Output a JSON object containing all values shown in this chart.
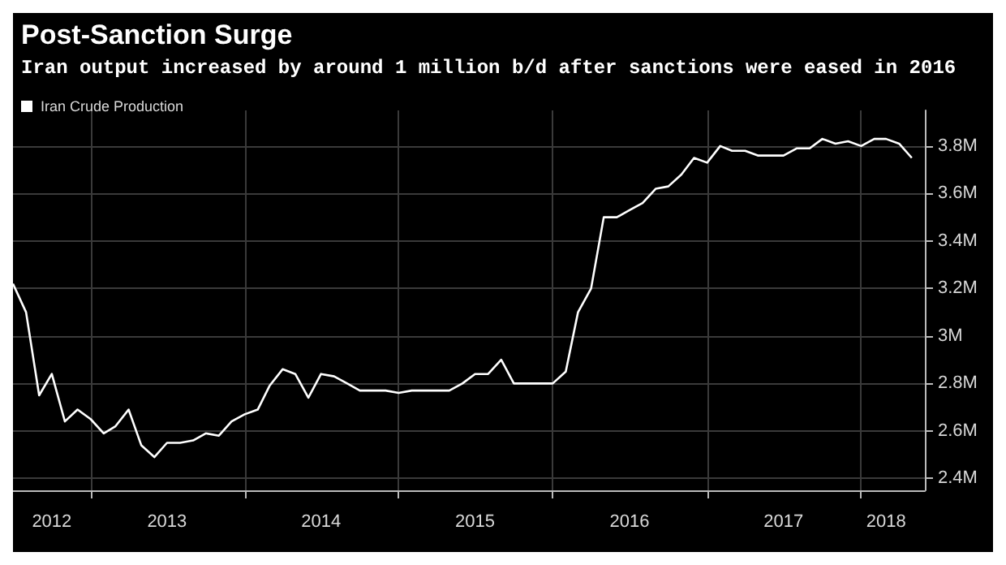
{
  "chart_data": {
    "type": "line",
    "title": "Post-Sanction Surge",
    "subtitle": "Iran output increased by around 1 million b/d after sanctions were eased in 2016",
    "x": [
      "2012-07",
      "2012-08",
      "2012-09",
      "2012-10",
      "2012-11",
      "2012-12",
      "2013-01",
      "2013-02",
      "2013-03",
      "2013-04",
      "2013-05",
      "2013-06",
      "2013-07",
      "2013-08",
      "2013-09",
      "2013-10",
      "2013-11",
      "2013-12",
      "2014-01",
      "2014-02",
      "2014-03",
      "2014-04",
      "2014-05",
      "2014-06",
      "2014-07",
      "2014-08",
      "2014-09",
      "2014-10",
      "2014-11",
      "2014-12",
      "2015-01",
      "2015-02",
      "2015-03",
      "2015-04",
      "2015-05",
      "2015-06",
      "2015-07",
      "2015-08",
      "2015-09",
      "2015-10",
      "2015-11",
      "2015-12",
      "2016-01",
      "2016-02",
      "2016-03",
      "2016-04",
      "2016-05",
      "2016-06",
      "2016-07",
      "2016-08",
      "2016-09",
      "2016-10",
      "2016-11",
      "2016-12",
      "2017-01",
      "2017-02",
      "2017-03",
      "2017-04",
      "2017-05",
      "2017-06",
      "2017-07",
      "2017-08",
      "2017-09",
      "2017-10",
      "2017-11",
      "2017-12",
      "2018-01",
      "2018-02",
      "2018-03",
      "2018-04",
      "2018-05"
    ],
    "series": [
      {
        "name": "Iran Crude Production",
        "color": "#ffffff",
        "values": [
          3.22,
          3.1,
          2.75,
          2.84,
          2.64,
          2.69,
          2.65,
          2.59,
          2.62,
          2.69,
          2.54,
          2.49,
          2.55,
          2.55,
          2.56,
          2.59,
          2.58,
          2.64,
          2.67,
          2.69,
          2.79,
          2.86,
          2.84,
          2.74,
          2.84,
          2.83,
          2.8,
          2.77,
          2.77,
          2.77,
          2.76,
          2.77,
          2.77,
          2.77,
          2.77,
          2.8,
          2.84,
          2.84,
          2.9,
          2.8,
          2.8,
          2.8,
          2.8,
          2.85,
          3.1,
          3.2,
          3.5,
          3.5,
          3.53,
          3.56,
          3.62,
          3.63,
          3.68,
          3.75,
          3.73,
          3.8,
          3.78,
          3.78,
          3.76,
          3.76,
          3.76,
          3.79,
          3.79,
          3.83,
          3.81,
          3.82,
          3.8,
          3.83,
          3.83,
          3.81,
          3.75
        ]
      }
    ],
    "xlim": [
      "2012-07",
      "2018-06"
    ],
    "xticks": [
      {
        "value": "2012-10",
        "label": "2012"
      },
      {
        "value": "2013-01",
        "label": null
      },
      {
        "value": "2013-07",
        "label": "2013"
      },
      {
        "value": "2014-01",
        "label": null
      },
      {
        "value": "2014-07",
        "label": "2014"
      },
      {
        "value": "2015-01",
        "label": null
      },
      {
        "value": "2015-07",
        "label": "2015"
      },
      {
        "value": "2016-01",
        "label": null
      },
      {
        "value": "2016-07",
        "label": "2016"
      },
      {
        "value": "2017-01",
        "label": null
      },
      {
        "value": "2017-07",
        "label": "2017"
      },
      {
        "value": "2018-01",
        "label": null
      },
      {
        "value": "2018-03",
        "label": "2018"
      }
    ],
    "ylim": [
      2.35,
      3.95
    ],
    "yticks": [
      {
        "value": 2.4,
        "label": "2.4M"
      },
      {
        "value": 2.6,
        "label": "2.6M"
      },
      {
        "value": 2.8,
        "label": "2.8M"
      },
      {
        "value": 3.0,
        "label": "3M"
      },
      {
        "value": 3.2,
        "label": "3.2M"
      },
      {
        "value": 3.4,
        "label": "3.4M"
      },
      {
        "value": 3.6,
        "label": "3.6M"
      },
      {
        "value": 3.8,
        "label": "3.8M"
      }
    ],
    "grid": true,
    "legend": "top left",
    "marker": "none",
    "line_style": "solid"
  }
}
